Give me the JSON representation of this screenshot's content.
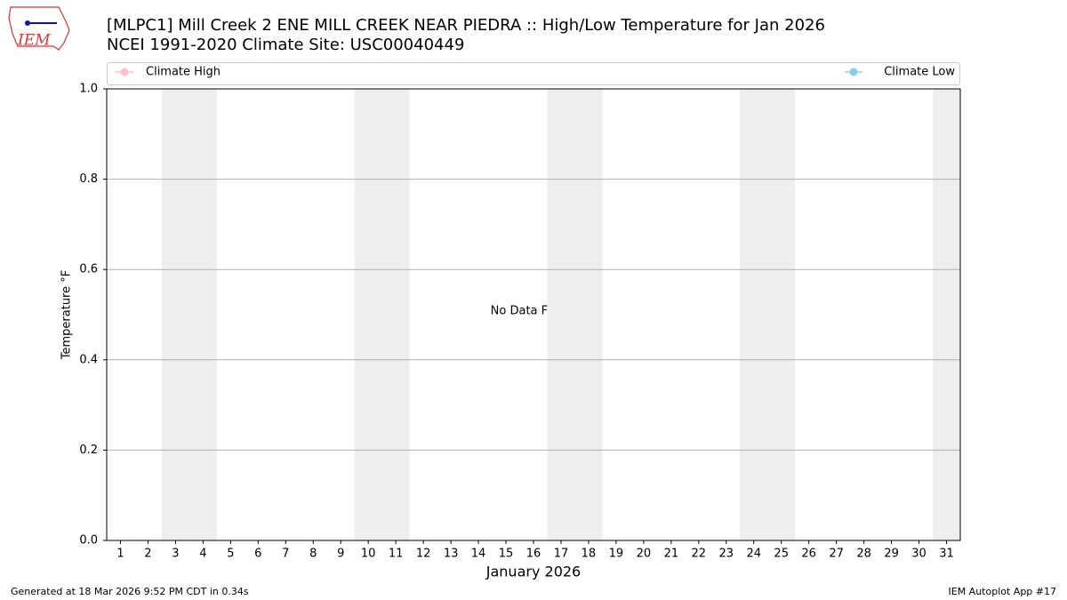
{
  "chart_data": {
    "type": "line",
    "title": "[MLPC1] Mill Creek 2 ENE MILL CREEK NEAR PIEDRA :: High/Low Temperature for Jan 2026",
    "subtitle": "NCEI 1991-2020 Climate Site: USC00040449",
    "ylabel": "Temperature °F",
    "xlabel": "January 2026",
    "annotation": "No Data Found",
    "footer_left": "Generated at 18 Mar 2026 9:52 PM CDT in 0.34s",
    "footer_right": "IEM Autoplot App #17",
    "logo_text": "IEM",
    "series": [
      {
        "name": "Climate High",
        "color": "#ffc0cb",
        "values": []
      },
      {
        "name": "Climate Low",
        "color": "#87ceeb",
        "values": []
      }
    ],
    "x": [],
    "xlim": [
      0.5,
      31.5
    ],
    "xticks": [
      1,
      2,
      3,
      4,
      5,
      6,
      7,
      8,
      9,
      10,
      11,
      12,
      13,
      14,
      15,
      16,
      17,
      18,
      19,
      20,
      21,
      22,
      23,
      24,
      25,
      26,
      27,
      28,
      29,
      30,
      31
    ],
    "ylim": [
      0,
      1
    ],
    "yticks": [
      {
        "value": 0,
        "label": "0.0"
      },
      0.2,
      0.4,
      0.6,
      0.8,
      {
        "value": 1,
        "label": "1.0"
      }
    ],
    "shaded_spans": [
      [
        2.5,
        4.5
      ],
      [
        9.5,
        11.5
      ],
      [
        16.5,
        18.5
      ],
      [
        23.5,
        25.5
      ],
      [
        30.5,
        32.5
      ]
    ],
    "shade_color": "#eeeeee",
    "grid": true
  }
}
